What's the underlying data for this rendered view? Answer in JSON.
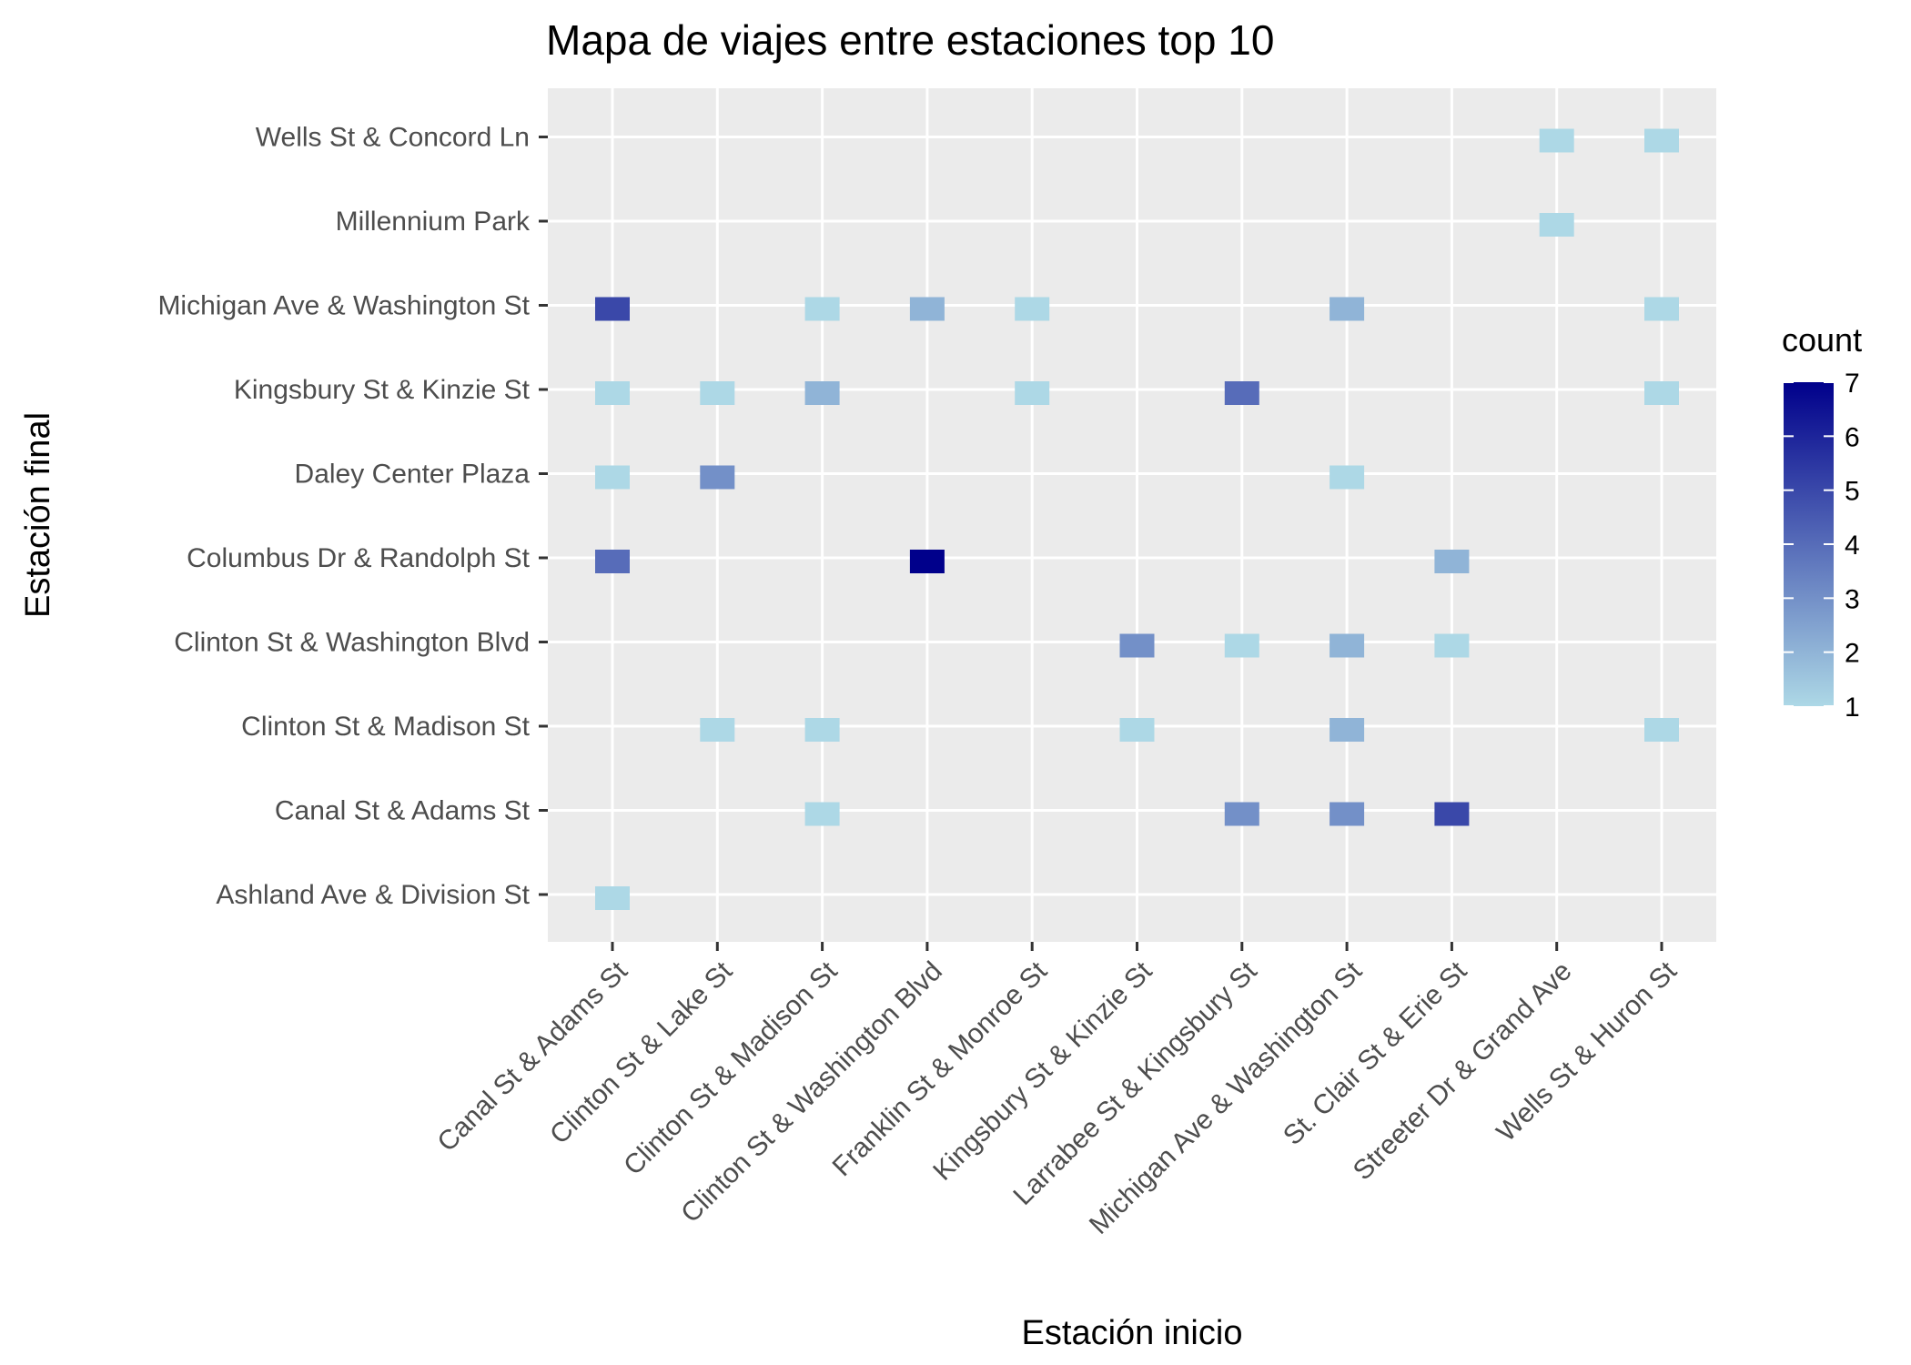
{
  "chart_data": {
    "type": "heatmap",
    "title": "Mapa de viajes entre estaciones top 10",
    "xlabel": "Estación inicio",
    "ylabel": "Estación final",
    "x_categories": [
      "Canal St & Adams St",
      "Clinton St & Lake St",
      "Clinton St & Madison St",
      "Clinton St & Washington Blvd",
      "Franklin St & Monroe St",
      "Kingsbury St & Kinzie St",
      "Larrabee St & Kingsbury St",
      "Michigan Ave & Washington St",
      "St. Clair St & Erie St",
      "Streeter Dr & Grand Ave",
      "Wells St & Huron St"
    ],
    "y_categories": [
      "Ashland Ave & Division St",
      "Canal St & Adams St",
      "Clinton St & Madison St",
      "Clinton St & Washington Blvd",
      "Columbus Dr & Randolph St",
      "Daley Center Plaza",
      "Kingsbury St & Kinzie St",
      "Michigan Ave & Washington St",
      "Millennium Park",
      "Wells St & Concord Ln"
    ],
    "cells": [
      {
        "x": "Streeter Dr & Grand Ave",
        "y": "Wells St & Concord Ln",
        "count": 1
      },
      {
        "x": "Wells St & Huron St",
        "y": "Wells St & Concord Ln",
        "count": 1
      },
      {
        "x": "Streeter Dr & Grand Ave",
        "y": "Millennium Park",
        "count": 1
      },
      {
        "x": "Canal St & Adams St",
        "y": "Michigan Ave & Washington St",
        "count": 5
      },
      {
        "x": "Clinton St & Madison St",
        "y": "Michigan Ave & Washington St",
        "count": 1
      },
      {
        "x": "Clinton St & Washington Blvd",
        "y": "Michigan Ave & Washington St",
        "count": 2
      },
      {
        "x": "Franklin St & Monroe St",
        "y": "Michigan Ave & Washington St",
        "count": 1
      },
      {
        "x": "Michigan Ave & Washington St",
        "y": "Michigan Ave & Washington St",
        "count": 2
      },
      {
        "x": "Wells St & Huron St",
        "y": "Michigan Ave & Washington St",
        "count": 1
      },
      {
        "x": "Canal St & Adams St",
        "y": "Kingsbury St & Kinzie St",
        "count": 1
      },
      {
        "x": "Clinton St & Lake St",
        "y": "Kingsbury St & Kinzie St",
        "count": 1
      },
      {
        "x": "Clinton St & Madison St",
        "y": "Kingsbury St & Kinzie St",
        "count": 2
      },
      {
        "x": "Franklin St & Monroe St",
        "y": "Kingsbury St & Kinzie St",
        "count": 1
      },
      {
        "x": "Larrabee St & Kingsbury St",
        "y": "Kingsbury St & Kinzie St",
        "count": 4
      },
      {
        "x": "Wells St & Huron St",
        "y": "Kingsbury St & Kinzie St",
        "count": 1
      },
      {
        "x": "Canal St & Adams St",
        "y": "Daley Center Plaza",
        "count": 1
      },
      {
        "x": "Clinton St & Lake St",
        "y": "Daley Center Plaza",
        "count": 3
      },
      {
        "x": "Michigan Ave & Washington St",
        "y": "Daley Center Plaza",
        "count": 1
      },
      {
        "x": "Canal St & Adams St",
        "y": "Columbus Dr & Randolph St",
        "count": 4
      },
      {
        "x": "Clinton St & Washington Blvd",
        "y": "Columbus Dr & Randolph St",
        "count": 7
      },
      {
        "x": "St. Clair St & Erie St",
        "y": "Columbus Dr & Randolph St",
        "count": 2
      },
      {
        "x": "Kingsbury St & Kinzie St",
        "y": "Clinton St & Washington Blvd",
        "count": 3
      },
      {
        "x": "Larrabee St & Kingsbury St",
        "y": "Clinton St & Washington Blvd",
        "count": 1
      },
      {
        "x": "Michigan Ave & Washington St",
        "y": "Clinton St & Washington Blvd",
        "count": 2
      },
      {
        "x": "St. Clair St & Erie St",
        "y": "Clinton St & Washington Blvd",
        "count": 1
      },
      {
        "x": "Clinton St & Lake St",
        "y": "Clinton St & Madison St",
        "count": 1
      },
      {
        "x": "Clinton St & Madison St",
        "y": "Clinton St & Madison St",
        "count": 1
      },
      {
        "x": "Kingsbury St & Kinzie St",
        "y": "Clinton St & Madison St",
        "count": 1
      },
      {
        "x": "Michigan Ave & Washington St",
        "y": "Clinton St & Madison St",
        "count": 2
      },
      {
        "x": "Wells St & Huron St",
        "y": "Clinton St & Madison St",
        "count": 1
      },
      {
        "x": "Clinton St & Madison St",
        "y": "Canal St & Adams St",
        "count": 1
      },
      {
        "x": "Larrabee St & Kingsbury St",
        "y": "Canal St & Adams St",
        "count": 3
      },
      {
        "x": "Michigan Ave & Washington St",
        "y": "Canal St & Adams St",
        "count": 3
      },
      {
        "x": "St. Clair St & Erie St",
        "y": "Canal St & Adams St",
        "count": 5
      },
      {
        "x": "Canal St & Adams St",
        "y": "Ashland Ave & Division St",
        "count": 1
      }
    ],
    "legend": {
      "title": "count",
      "min": 1,
      "max": 7,
      "ticks": [
        "1",
        "2",
        "3",
        "4",
        "5",
        "6",
        "7"
      ],
      "low_color": "#add8e6",
      "high_color": "#00008b",
      "placement": "right"
    },
    "panel_background": "#ebebeb",
    "grid_color": "#ffffff",
    "grid": true
  }
}
